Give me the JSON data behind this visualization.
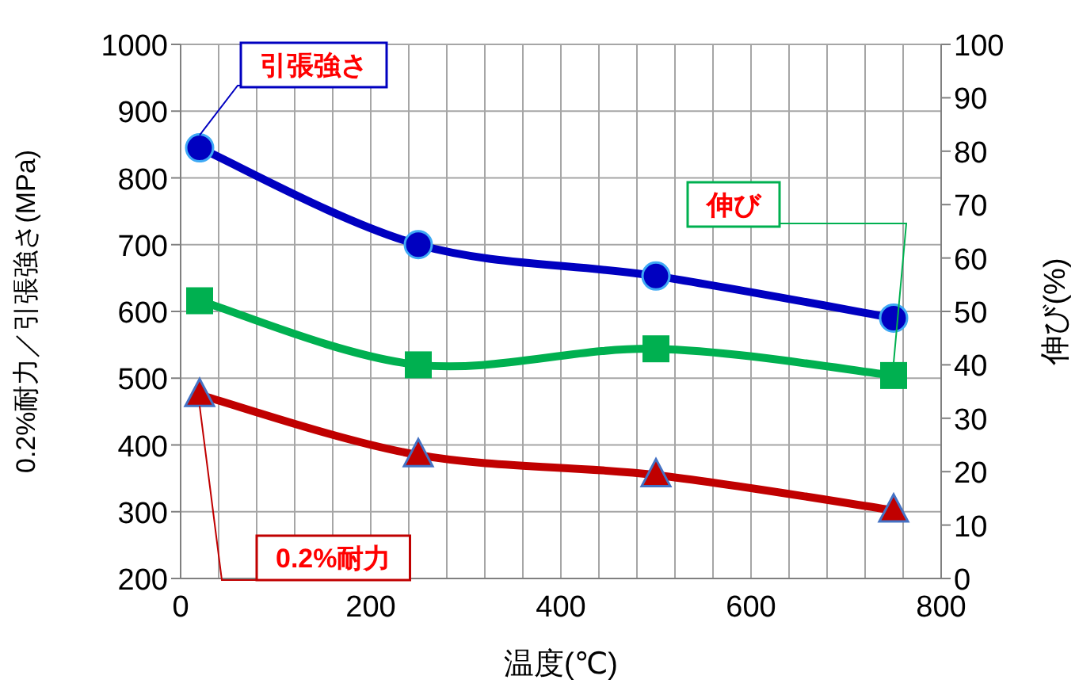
{
  "chart_data": {
    "type": "line",
    "xlabel": "温度(℃)",
    "ylabel": "0.2%耐力／引張強さ(MPa)",
    "y2label": "伸び(%)",
    "x": [
      20,
      250,
      500,
      750
    ],
    "series": [
      {
        "name": "引張強さ",
        "color": "#0000c0",
        "marker": "circle",
        "values": [
          845,
          700,
          653,
          590
        ]
      },
      {
        "name": "伸び",
        "color": "#00b050",
        "marker": "square",
        "axis": "y2",
        "values": [
          52,
          40,
          43,
          38
        ]
      },
      {
        "name": "0.2%耐力",
        "color": "#c00000",
        "marker": "triangle",
        "values": [
          475,
          385,
          355,
          302
        ]
      }
    ],
    "xlim": [
      0,
      800
    ],
    "xticks": [
      0,
      {
        "value": 40,
        "label": null
      },
      {
        "value": 80,
        "label": null
      },
      {
        "value": 120,
        "label": null
      },
      {
        "value": 160,
        "label": null
      },
      200,
      {
        "value": 240,
        "label": null
      },
      {
        "value": 280,
        "label": null
      },
      {
        "value": 320,
        "label": null
      },
      {
        "value": 360,
        "label": null
      },
      400,
      {
        "value": 440,
        "label": null
      },
      {
        "value": 480,
        "label": null
      },
      {
        "value": 520,
        "label": null
      },
      {
        "value": 560,
        "label": null
      },
      600,
      {
        "value": 640,
        "label": null
      },
      {
        "value": 680,
        "label": null
      },
      {
        "value": 720,
        "label": null
      },
      {
        "value": 760,
        "label": null
      },
      800
    ],
    "ylim": [
      200,
      1000
    ],
    "yticks": [
      200,
      300,
      400,
      500,
      600,
      700,
      800,
      900,
      1000
    ],
    "y2lim": [
      0,
      100
    ],
    "y2ticks": [
      0,
      10,
      20,
      30,
      40,
      50,
      60,
      70,
      80,
      90,
      100
    ],
    "grid": true
  }
}
